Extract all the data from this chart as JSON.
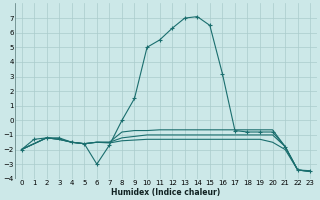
{
  "xlabel": "Humidex (Indice chaleur)",
  "background_color": "#cce8e8",
  "grid_color": "#aacccc",
  "line_color": "#1a6e6e",
  "xlim": [
    -0.5,
    23.5
  ],
  "ylim": [
    -4,
    8
  ],
  "xticks": [
    0,
    1,
    2,
    3,
    4,
    5,
    6,
    7,
    8,
    9,
    10,
    11,
    12,
    13,
    14,
    15,
    16,
    17,
    18,
    19,
    20,
    21,
    22,
    23
  ],
  "yticks": [
    -4,
    -3,
    -2,
    -1,
    0,
    1,
    2,
    3,
    4,
    5,
    6,
    7
  ],
  "lines": [
    {
      "x": [
        0,
        1,
        2,
        3,
        4,
        5,
        6,
        7,
        8,
        9,
        10,
        11,
        12,
        13,
        14,
        15,
        16,
        17,
        18,
        19,
        20,
        21,
        22,
        23
      ],
      "y": [
        -2.0,
        -1.3,
        -1.2,
        -1.2,
        -1.5,
        -1.6,
        -3.0,
        -1.7,
        0.0,
        1.5,
        5.0,
        5.5,
        6.3,
        7.0,
        7.1,
        6.5,
        3.2,
        -0.7,
        -0.8,
        -0.8,
        -0.8,
        -1.8,
        -3.4,
        -3.45
      ],
      "marker": true
    },
    {
      "x": [
        0,
        2,
        3,
        4,
        5,
        6,
        7,
        8,
        9,
        10,
        11,
        12,
        13,
        14,
        15,
        16,
        17,
        18,
        19,
        20,
        21,
        22,
        23
      ],
      "y": [
        -2.0,
        -1.2,
        -1.3,
        -1.5,
        -1.6,
        -1.5,
        -1.5,
        -0.8,
        -0.7,
        -0.7,
        -0.65,
        -0.65,
        -0.65,
        -0.65,
        -0.65,
        -0.65,
        -0.65,
        -0.65,
        -0.65,
        -0.65,
        -1.8,
        -3.4,
        -3.5
      ],
      "marker": false
    },
    {
      "x": [
        0,
        2,
        3,
        4,
        5,
        6,
        7,
        8,
        9,
        10,
        11,
        12,
        13,
        14,
        15,
        16,
        17,
        18,
        19,
        20,
        21,
        22,
        23
      ],
      "y": [
        -2.0,
        -1.2,
        -1.3,
        -1.5,
        -1.6,
        -1.5,
        -1.5,
        -1.2,
        -1.1,
        -1.0,
        -1.0,
        -1.0,
        -1.0,
        -1.0,
        -1.0,
        -1.0,
        -1.0,
        -1.0,
        -1.0,
        -1.0,
        -1.8,
        -3.4,
        -3.5
      ],
      "marker": false
    },
    {
      "x": [
        0,
        2,
        3,
        4,
        5,
        6,
        7,
        8,
        9,
        10,
        11,
        12,
        13,
        14,
        15,
        16,
        17,
        18,
        19,
        20,
        21,
        22,
        23
      ],
      "y": [
        -2.0,
        -1.2,
        -1.3,
        -1.5,
        -1.6,
        -1.5,
        -1.55,
        -1.4,
        -1.35,
        -1.3,
        -1.3,
        -1.3,
        -1.3,
        -1.3,
        -1.3,
        -1.3,
        -1.3,
        -1.3,
        -1.3,
        -1.5,
        -2.0,
        -3.4,
        -3.5
      ],
      "marker": false
    }
  ]
}
